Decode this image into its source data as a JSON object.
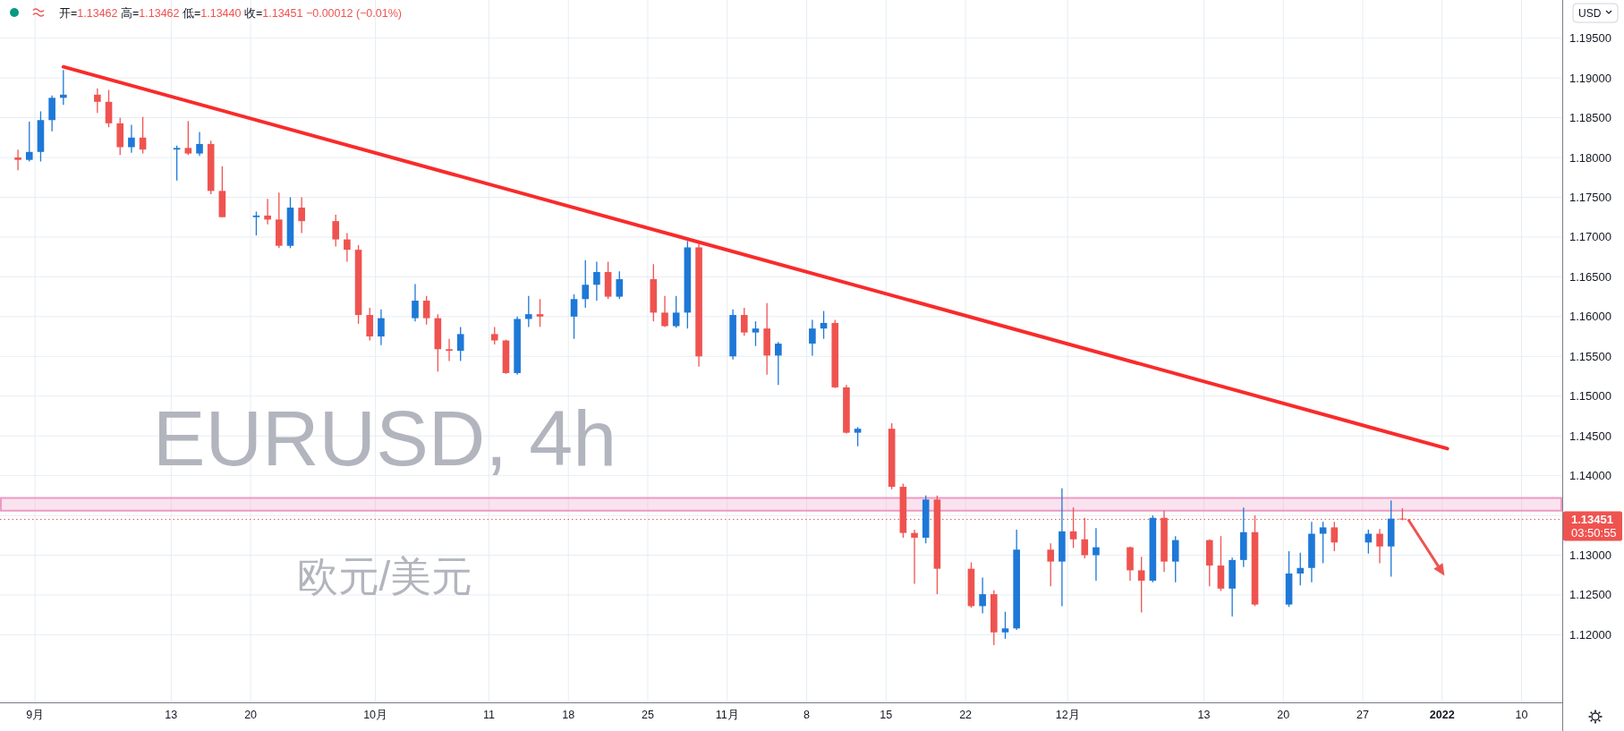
{
  "chart_data": {
    "type": "candlestick",
    "title": "EURUSD, 4h",
    "subtitle": "欧元/美元",
    "x": [
      "2021-08-30T12:00",
      "2021-08-31T12:00",
      "2021-09-01T12:00",
      "2021-09-02T12:00",
      "2021-09-03T12:00",
      "2021-09-06T12:00",
      "2021-09-07T12:00",
      "2021-09-08T12:00",
      "2021-09-09T12:00",
      "2021-09-10T12:00",
      "2021-09-13T12:00",
      "2021-09-14T12:00",
      "2021-09-15T12:00",
      "2021-09-16T12:00",
      "2021-09-17T12:00",
      "2021-09-20T12:00",
      "2021-09-21T12:00",
      "2021-09-22T12:00",
      "2021-09-23T12:00",
      "2021-09-24T12:00",
      "2021-09-27T12:00",
      "2021-09-28T12:00",
      "2021-09-29T12:00",
      "2021-09-30T12:00",
      "2021-10-01T12:00",
      "2021-10-04T12:00",
      "2021-10-05T12:00",
      "2021-10-06T12:00",
      "2021-10-07T12:00",
      "2021-10-08T12:00",
      "2021-10-11T12:00",
      "2021-10-12T12:00",
      "2021-10-13T12:00",
      "2021-10-14T12:00",
      "2021-10-15T12:00",
      "2021-10-18T12:00",
      "2021-10-19T12:00",
      "2021-10-20T12:00",
      "2021-10-21T12:00",
      "2021-10-22T12:00",
      "2021-10-25T12:00",
      "2021-10-26T12:00",
      "2021-10-27T12:00",
      "2021-10-28T12:00",
      "2021-10-29T12:00",
      "2021-11-01T12:00",
      "2021-11-02T12:00",
      "2021-11-03T12:00",
      "2021-11-04T12:00",
      "2021-11-05T12:00",
      "2021-11-08T12:00",
      "2021-11-09T12:00",
      "2021-11-10T12:00",
      "2021-11-11T12:00",
      "2021-11-12T12:00",
      "2021-11-15T12:00",
      "2021-11-16T12:00",
      "2021-11-17T12:00",
      "2021-11-18T12:00",
      "2021-11-19T12:00",
      "2021-11-22T12:00",
      "2021-11-23T12:00",
      "2021-11-24T12:00",
      "2021-11-25T12:00",
      "2021-11-26T12:00",
      "2021-11-29T12:00",
      "2021-11-30T12:00",
      "2021-12-01T12:00",
      "2021-12-02T12:00",
      "2021-12-03T12:00",
      "2021-12-06T12:00",
      "2021-12-07T12:00",
      "2021-12-08T12:00",
      "2021-12-09T12:00",
      "2021-12-10T12:00",
      "2021-12-13T12:00",
      "2021-12-14T12:00",
      "2021-12-15T12:00",
      "2021-12-16T12:00",
      "2021-12-17T12:00",
      "2021-12-20T12:00",
      "2021-12-21T12:00",
      "2021-12-22T12:00",
      "2021-12-23T12:00",
      "2021-12-24T12:00",
      "2021-12-27T12:00",
      "2021-12-28T12:00",
      "2021-12-29T12:00",
      "2021-12-30T12:00"
    ],
    "ohlc": [
      [
        1.18,
        1.181,
        1.1784,
        1.1797
      ],
      [
        1.1797,
        1.1845,
        1.1795,
        1.1807
      ],
      [
        1.1807,
        1.1858,
        1.1795,
        1.1847
      ],
      [
        1.1847,
        1.1878,
        1.1833,
        1.1875
      ],
      [
        1.1875,
        1.191,
        1.1866,
        1.1879
      ],
      [
        1.1879,
        1.1887,
        1.1856,
        1.187
      ],
      [
        1.187,
        1.1885,
        1.1838,
        1.1843
      ],
      [
        1.1843,
        1.185,
        1.1803,
        1.1813
      ],
      [
        1.1813,
        1.1841,
        1.1806,
        1.1825
      ],
      [
        1.1825,
        1.1851,
        1.1805,
        1.181
      ],
      [
        1.181,
        1.1815,
        1.1771,
        1.1812
      ],
      [
        1.1812,
        1.1846,
        1.1803,
        1.1805
      ],
      [
        1.1805,
        1.1832,
        1.1802,
        1.1817
      ],
      [
        1.1817,
        1.1821,
        1.1754,
        1.1758
      ],
      [
        1.1758,
        1.1789,
        1.1725,
        1.1725
      ],
      [
        1.1725,
        1.1732,
        1.1702,
        1.1727
      ],
      [
        1.1727,
        1.1748,
        1.1716,
        1.1722
      ],
      [
        1.1722,
        1.1756,
        1.1686,
        1.1689
      ],
      [
        1.1689,
        1.175,
        1.1686,
        1.1737
      ],
      [
        1.1737,
        1.175,
        1.1705,
        1.172
      ],
      [
        1.172,
        1.1728,
        1.1688,
        1.1697
      ],
      [
        1.1697,
        1.1705,
        1.1669,
        1.1684
      ],
      [
        1.1684,
        1.169,
        1.1591,
        1.1602
      ],
      [
        1.1602,
        1.1611,
        1.157,
        1.1575
      ],
      [
        1.1575,
        1.1609,
        1.1564,
        1.1598
      ],
      [
        1.1598,
        1.1641,
        1.1594,
        1.162
      ],
      [
        1.162,
        1.1626,
        1.159,
        1.1598
      ],
      [
        1.1598,
        1.1603,
        1.1531,
        1.1559
      ],
      [
        1.1559,
        1.1572,
        1.1544,
        1.1557
      ],
      [
        1.1557,
        1.1587,
        1.1544,
        1.1578
      ],
      [
        1.1578,
        1.1587,
        1.1565,
        1.157
      ],
      [
        1.157,
        1.1571,
        1.1528,
        1.1529
      ],
      [
        1.1529,
        1.16,
        1.1527,
        1.1597
      ],
      [
        1.1597,
        1.1626,
        1.1587,
        1.1603
      ],
      [
        1.1603,
        1.1622,
        1.1587,
        1.16
      ],
      [
        1.16,
        1.1628,
        1.1572,
        1.1622
      ],
      [
        1.1622,
        1.1671,
        1.1611,
        1.164
      ],
      [
        1.164,
        1.1669,
        1.162,
        1.1656
      ],
      [
        1.1656,
        1.1669,
        1.1622,
        1.1625
      ],
      [
        1.1625,
        1.1657,
        1.1622,
        1.1647
      ],
      [
        1.1647,
        1.1666,
        1.1594,
        1.1605
      ],
      [
        1.1605,
        1.1626,
        1.1587,
        1.1588
      ],
      [
        1.1588,
        1.1626,
        1.1586,
        1.1605
      ],
      [
        1.1605,
        1.1695,
        1.1585,
        1.1687
      ],
      [
        1.1687,
        1.1692,
        1.1537,
        1.155
      ],
      [
        1.155,
        1.1609,
        1.1546,
        1.1602
      ],
      [
        1.1602,
        1.1611,
        1.1576,
        1.158
      ],
      [
        1.158,
        1.1594,
        1.1563,
        1.1585
      ],
      [
        1.1585,
        1.1617,
        1.1527,
        1.1551
      ],
      [
        1.1551,
        1.1568,
        1.1514,
        1.1566
      ],
      [
        1.1566,
        1.1596,
        1.1551,
        1.1585
      ],
      [
        1.1585,
        1.1607,
        1.1572,
        1.1592
      ],
      [
        1.1592,
        1.1596,
        1.151,
        1.1511
      ],
      [
        1.1511,
        1.1514,
        1.1453,
        1.1454
      ],
      [
        1.1454,
        1.1461,
        1.1437,
        1.1459
      ],
      [
        1.1459,
        1.1466,
        1.1383,
        1.1386
      ],
      [
        1.1386,
        1.139,
        1.1322,
        1.1328
      ],
      [
        1.1328,
        1.1332,
        1.1264,
        1.1322
      ],
      [
        1.1322,
        1.1375,
        1.1315,
        1.137
      ],
      [
        1.137,
        1.1375,
        1.1251,
        1.1283
      ],
      [
        1.1283,
        1.1291,
        1.1234,
        1.1236
      ],
      [
        1.1236,
        1.1272,
        1.1227,
        1.1251
      ],
      [
        1.1251,
        1.1256,
        1.1187,
        1.1203
      ],
      [
        1.1203,
        1.1229,
        1.1195,
        1.1208
      ],
      [
        1.1208,
        1.1332,
        1.1206,
        1.1307
      ],
      [
        1.1307,
        1.1315,
        1.1261,
        1.1292
      ],
      [
        1.1292,
        1.1384,
        1.1236,
        1.133
      ],
      [
        1.133,
        1.136,
        1.1309,
        1.132
      ],
      [
        1.132,
        1.1347,
        1.1296,
        1.13
      ],
      [
        1.13,
        1.1334,
        1.1268,
        1.131
      ],
      [
        1.131,
        1.1311,
        1.1268,
        1.1281
      ],
      [
        1.1281,
        1.1298,
        1.1228,
        1.1268
      ],
      [
        1.1268,
        1.135,
        1.1266,
        1.1347
      ],
      [
        1.1347,
        1.1356,
        1.1279,
        1.1292
      ],
      [
        1.1292,
        1.1324,
        1.1266,
        1.1319
      ],
      [
        1.1319,
        1.132,
        1.1261,
        1.1287
      ],
      [
        1.1287,
        1.1324,
        1.1255,
        1.1258
      ],
      [
        1.1258,
        1.1297,
        1.1223,
        1.1294
      ],
      [
        1.1294,
        1.136,
        1.1285,
        1.1329
      ],
      [
        1.1329,
        1.135,
        1.1236,
        1.1238
      ],
      [
        1.1238,
        1.1305,
        1.1235,
        1.1277
      ],
      [
        1.1277,
        1.1303,
        1.1262,
        1.1284
      ],
      [
        1.1284,
        1.1342,
        1.1266,
        1.1327
      ],
      [
        1.1327,
        1.1342,
        1.129,
        1.1335
      ],
      [
        1.1335,
        1.1342,
        1.1305,
        1.1316
      ],
      [
        1.1316,
        1.1332,
        1.1302,
        1.1327
      ],
      [
        1.1327,
        1.1333,
        1.129,
        1.1311
      ],
      [
        1.1311,
        1.1369,
        1.1273,
        1.1346
      ],
      [
        1.1346,
        1.1359,
        1.1344,
        1.1345
      ]
    ],
    "colors": [
      "#ef5350",
      "#1e78d7",
      "#1e78d7",
      "#1e78d7",
      "#1e78d7",
      "#ef5350",
      "#ef5350",
      "#ef5350",
      "#1e78d7",
      "#ef5350",
      "#1e78d7",
      "#ef5350",
      "#1e78d7",
      "#ef5350",
      "#ef5350",
      "#1e78d7",
      "#ef5350",
      "#ef5350",
      "#1e78d7",
      "#ef5350",
      "#ef5350",
      "#ef5350",
      "#ef5350",
      "#ef5350",
      "#1e78d7",
      "#1e78d7",
      "#ef5350",
      "#ef5350",
      "#ef5350",
      "#1e78d7",
      "#ef5350",
      "#ef5350",
      "#1e78d7",
      "#1e78d7",
      "#ef5350",
      "#1e78d7",
      "#1e78d7",
      "#1e78d7",
      "#ef5350",
      "#1e78d7",
      "#ef5350",
      "#ef5350",
      "#1e78d7",
      "#1e78d7",
      "#ef5350",
      "#1e78d7",
      "#ef5350",
      "#1e78d7",
      "#ef5350",
      "#1e78d7",
      "#1e78d7",
      "#1e78d7",
      "#ef5350",
      "#ef5350",
      "#1e78d7",
      "#ef5350",
      "#ef5350",
      "#ef5350",
      "#1e78d7",
      "#ef5350",
      "#ef5350",
      "#1e78d7",
      "#ef5350",
      "#1e78d7",
      "#1e78d7",
      "#ef5350",
      "#1e78d7",
      "#ef5350",
      "#ef5350",
      "#1e78d7",
      "#ef5350",
      "#ef5350",
      "#1e78d7",
      "#ef5350",
      "#1e78d7",
      "#ef5350",
      "#ef5350",
      "#1e78d7",
      "#1e78d7",
      "#ef5350",
      "#1e78d7",
      "#1e78d7",
      "#1e78d7",
      "#1e78d7",
      "#ef5350",
      "#1e78d7",
      "#ef5350",
      "#1e78d7",
      "#ef5350"
    ],
    "series": [
      {
        "type": "line",
        "x": [
          "2021-09-03T12:00",
          "2022-01-03T11:00"
        ],
        "values": [
          1.1914,
          1.1434
        ],
        "color": "#f92b2b"
      }
    ],
    "xlim": [
      "2021-08-28T22:00",
      "2022-01-13T14:00"
    ],
    "xticks": [
      {
        "value": "2021-09-01",
        "label": "9月"
      },
      {
        "value": "2021-09-13",
        "label": "13"
      },
      {
        "value": "2021-09-20",
        "label": "20"
      },
      {
        "value": "2021-10-01",
        "label": "10月"
      },
      {
        "value": "2021-10-11",
        "label": "11"
      },
      {
        "value": "2021-10-18",
        "label": "18"
      },
      {
        "value": "2021-10-25",
        "label": "25"
      },
      {
        "value": "2021-11-01",
        "label": "11月"
      },
      {
        "value": "2021-11-08",
        "label": "8"
      },
      {
        "value": "2021-11-15",
        "label": "15"
      },
      {
        "value": "2021-11-22",
        "label": "22"
      },
      {
        "value": "2021-12-01",
        "label": "12月"
      },
      {
        "value": "2021-12-13",
        "label": "13"
      },
      {
        "value": "2021-12-20",
        "label": "20"
      },
      {
        "value": "2021-12-27",
        "label": "27"
      },
      {
        "value": "2022-01-03",
        "label": "2022"
      },
      {
        "value": "2022-01-10",
        "label": "10"
      }
    ],
    "ylim": [
      1.1115,
      1.1998
    ],
    "yticks": [
      {
        "value": 1.12,
        "label": "1.12000"
      },
      {
        "value": 1.125,
        "label": "1.12500"
      },
      {
        "value": 1.13,
        "label": "1.13000"
      },
      {
        "value": 1.135,
        "label": null
      },
      {
        "value": 1.14,
        "label": "1.14000"
      },
      {
        "value": 1.145,
        "label": "1.14500"
      },
      {
        "value": 1.15,
        "label": "1.15000"
      },
      {
        "value": 1.155,
        "label": "1.15500"
      },
      {
        "value": 1.16,
        "label": "1.16000"
      },
      {
        "value": 1.165,
        "label": "1.16500"
      },
      {
        "value": 1.17,
        "label": "1.17000"
      },
      {
        "value": 1.175,
        "label": "1.17500"
      },
      {
        "value": 1.18,
        "label": "1.18000"
      },
      {
        "value": 1.185,
        "label": "1.18500"
      },
      {
        "value": 1.19,
        "label": "1.19000"
      },
      {
        "value": 1.195,
        "label": "1.19500"
      }
    ],
    "ref_lines": [
      {
        "axis": "y",
        "value": 1.13451,
        "label": "1.13451",
        "color": "#ef5350",
        "line_style": "dotted"
      }
    ],
    "bands": [
      {
        "axis": "y",
        "from": 1.1356,
        "to": 1.1372,
        "color": "#ec9ac3"
      }
    ],
    "annotations": [
      "开=1.13462 高=1.13462 低=1.13440 收=1.13451 −0.00012 (−0.01%)",
      "03:50:55",
      "USD"
    ],
    "grid": true
  }
}
